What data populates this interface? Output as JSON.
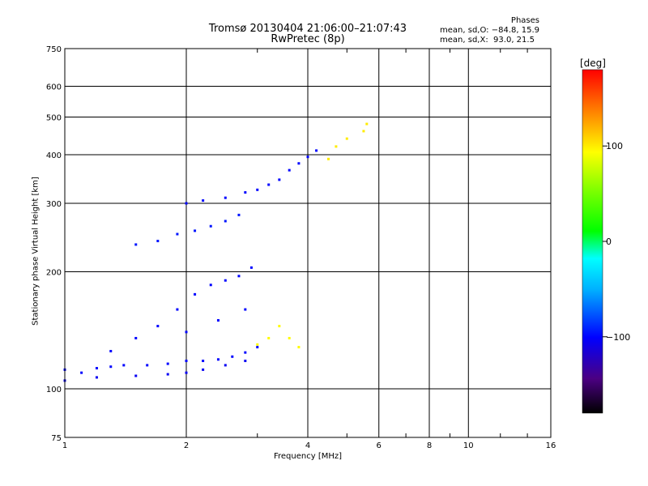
{
  "header": {
    "title": "Tromsø 20130404 21:06:00–21:07:43",
    "subtitle": "RwPretec (8p)"
  },
  "phase_box": {
    "heading": "Phases",
    "line1": "mean, sd,O: −84.8, 15.9",
    "line2": "mean, sd,X:  93.0, 21.5"
  },
  "colorbar": {
    "unit": "[deg]",
    "ticks": [
      "100",
      "0",
      "−100"
    ],
    "tick_values": [
      100,
      0,
      -100
    ],
    "range": [
      -180,
      180
    ],
    "colormap": "rainbow (black-purple-blue-cyan-green-yellow-red)"
  },
  "chart_data": {
    "type": "scatter",
    "title": "Tromsø 20130404 21:06:00–21:07:43",
    "subtitle": "RwPretec (8p)",
    "xlabel": "Frequency [MHz]",
    "ylabel": "Stationary phase Virtual Height [km]",
    "xscale": "log",
    "yscale": "log",
    "xlim": [
      1,
      16
    ],
    "ylim": [
      75,
      750
    ],
    "xticks": [
      1,
      2,
      4,
      6,
      8,
      10,
      16
    ],
    "xtick_labels": [
      "1",
      "2",
      "4",
      "6",
      "8",
      "10",
      "16"
    ],
    "yticks": [
      75,
      100,
      200,
      300,
      400,
      500,
      600,
      750
    ],
    "ytick_labels": [
      "75",
      "100",
      "200",
      "300",
      "400",
      "500",
      "600",
      "750"
    ],
    "grid": true,
    "color_encoding": "phase [deg]",
    "traces": [
      {
        "id": "Es-trace",
        "phase": -100,
        "points": [
          [
            1.0,
            112
          ],
          [
            1.1,
            110
          ],
          [
            1.2,
            113
          ],
          [
            1.3,
            114
          ],
          [
            1.4,
            115
          ],
          [
            1.6,
            115
          ],
          [
            1.8,
            116
          ],
          [
            2.0,
            118
          ],
          [
            2.2,
            118
          ],
          [
            2.4,
            119
          ],
          [
            2.6,
            121
          ],
          [
            2.8,
            124
          ],
          [
            3.0,
            128
          ]
        ]
      },
      {
        "id": "E-lower-trace",
        "phase": -105,
        "points": [
          [
            1.0,
            105
          ],
          [
            1.2,
            107
          ],
          [
            1.5,
            108
          ],
          [
            1.8,
            109
          ],
          [
            2.0,
            110
          ],
          [
            2.2,
            112
          ],
          [
            2.5,
            115
          ],
          [
            2.8,
            118
          ]
        ]
      },
      {
        "id": "F1-cloud",
        "phase": -100,
        "points": [
          [
            1.3,
            125
          ],
          [
            1.5,
            135
          ],
          [
            1.7,
            145
          ],
          [
            1.9,
            160
          ],
          [
            2.1,
            175
          ],
          [
            2.3,
            185
          ],
          [
            2.5,
            190
          ],
          [
            2.7,
            195
          ],
          [
            2.9,
            205
          ],
          [
            2.0,
            140
          ],
          [
            2.4,
            150
          ],
          [
            2.8,
            160
          ]
        ]
      },
      {
        "id": "F2-o-trace",
        "phase": -100,
        "points": [
          [
            2.0,
            300
          ],
          [
            2.2,
            305
          ],
          [
            2.5,
            310
          ],
          [
            2.8,
            320
          ],
          [
            3.0,
            325
          ],
          [
            3.2,
            335
          ],
          [
            3.4,
            345
          ],
          [
            3.6,
            365
          ],
          [
            3.8,
            380
          ],
          [
            4.0,
            395
          ],
          [
            4.2,
            410
          ]
        ]
      },
      {
        "id": "F2-lower-trace",
        "phase": -95,
        "points": [
          [
            1.5,
            235
          ],
          [
            1.7,
            240
          ],
          [
            1.9,
            250
          ],
          [
            2.1,
            255
          ],
          [
            2.3,
            262
          ],
          [
            2.5,
            270
          ],
          [
            2.7,
            280
          ]
        ]
      },
      {
        "id": "x-mode-trace",
        "phase": 95,
        "points": [
          [
            3.0,
            130
          ],
          [
            3.2,
            135
          ],
          [
            3.4,
            145
          ],
          [
            3.6,
            135
          ],
          [
            3.8,
            128
          ]
        ]
      },
      {
        "id": "F2-x-trace",
        "phase": 100,
        "points": [
          [
            4.5,
            390
          ],
          [
            4.7,
            420
          ],
          [
            5.0,
            440
          ],
          [
            5.5,
            460
          ],
          [
            5.6,
            480
          ]
        ]
      }
    ]
  }
}
